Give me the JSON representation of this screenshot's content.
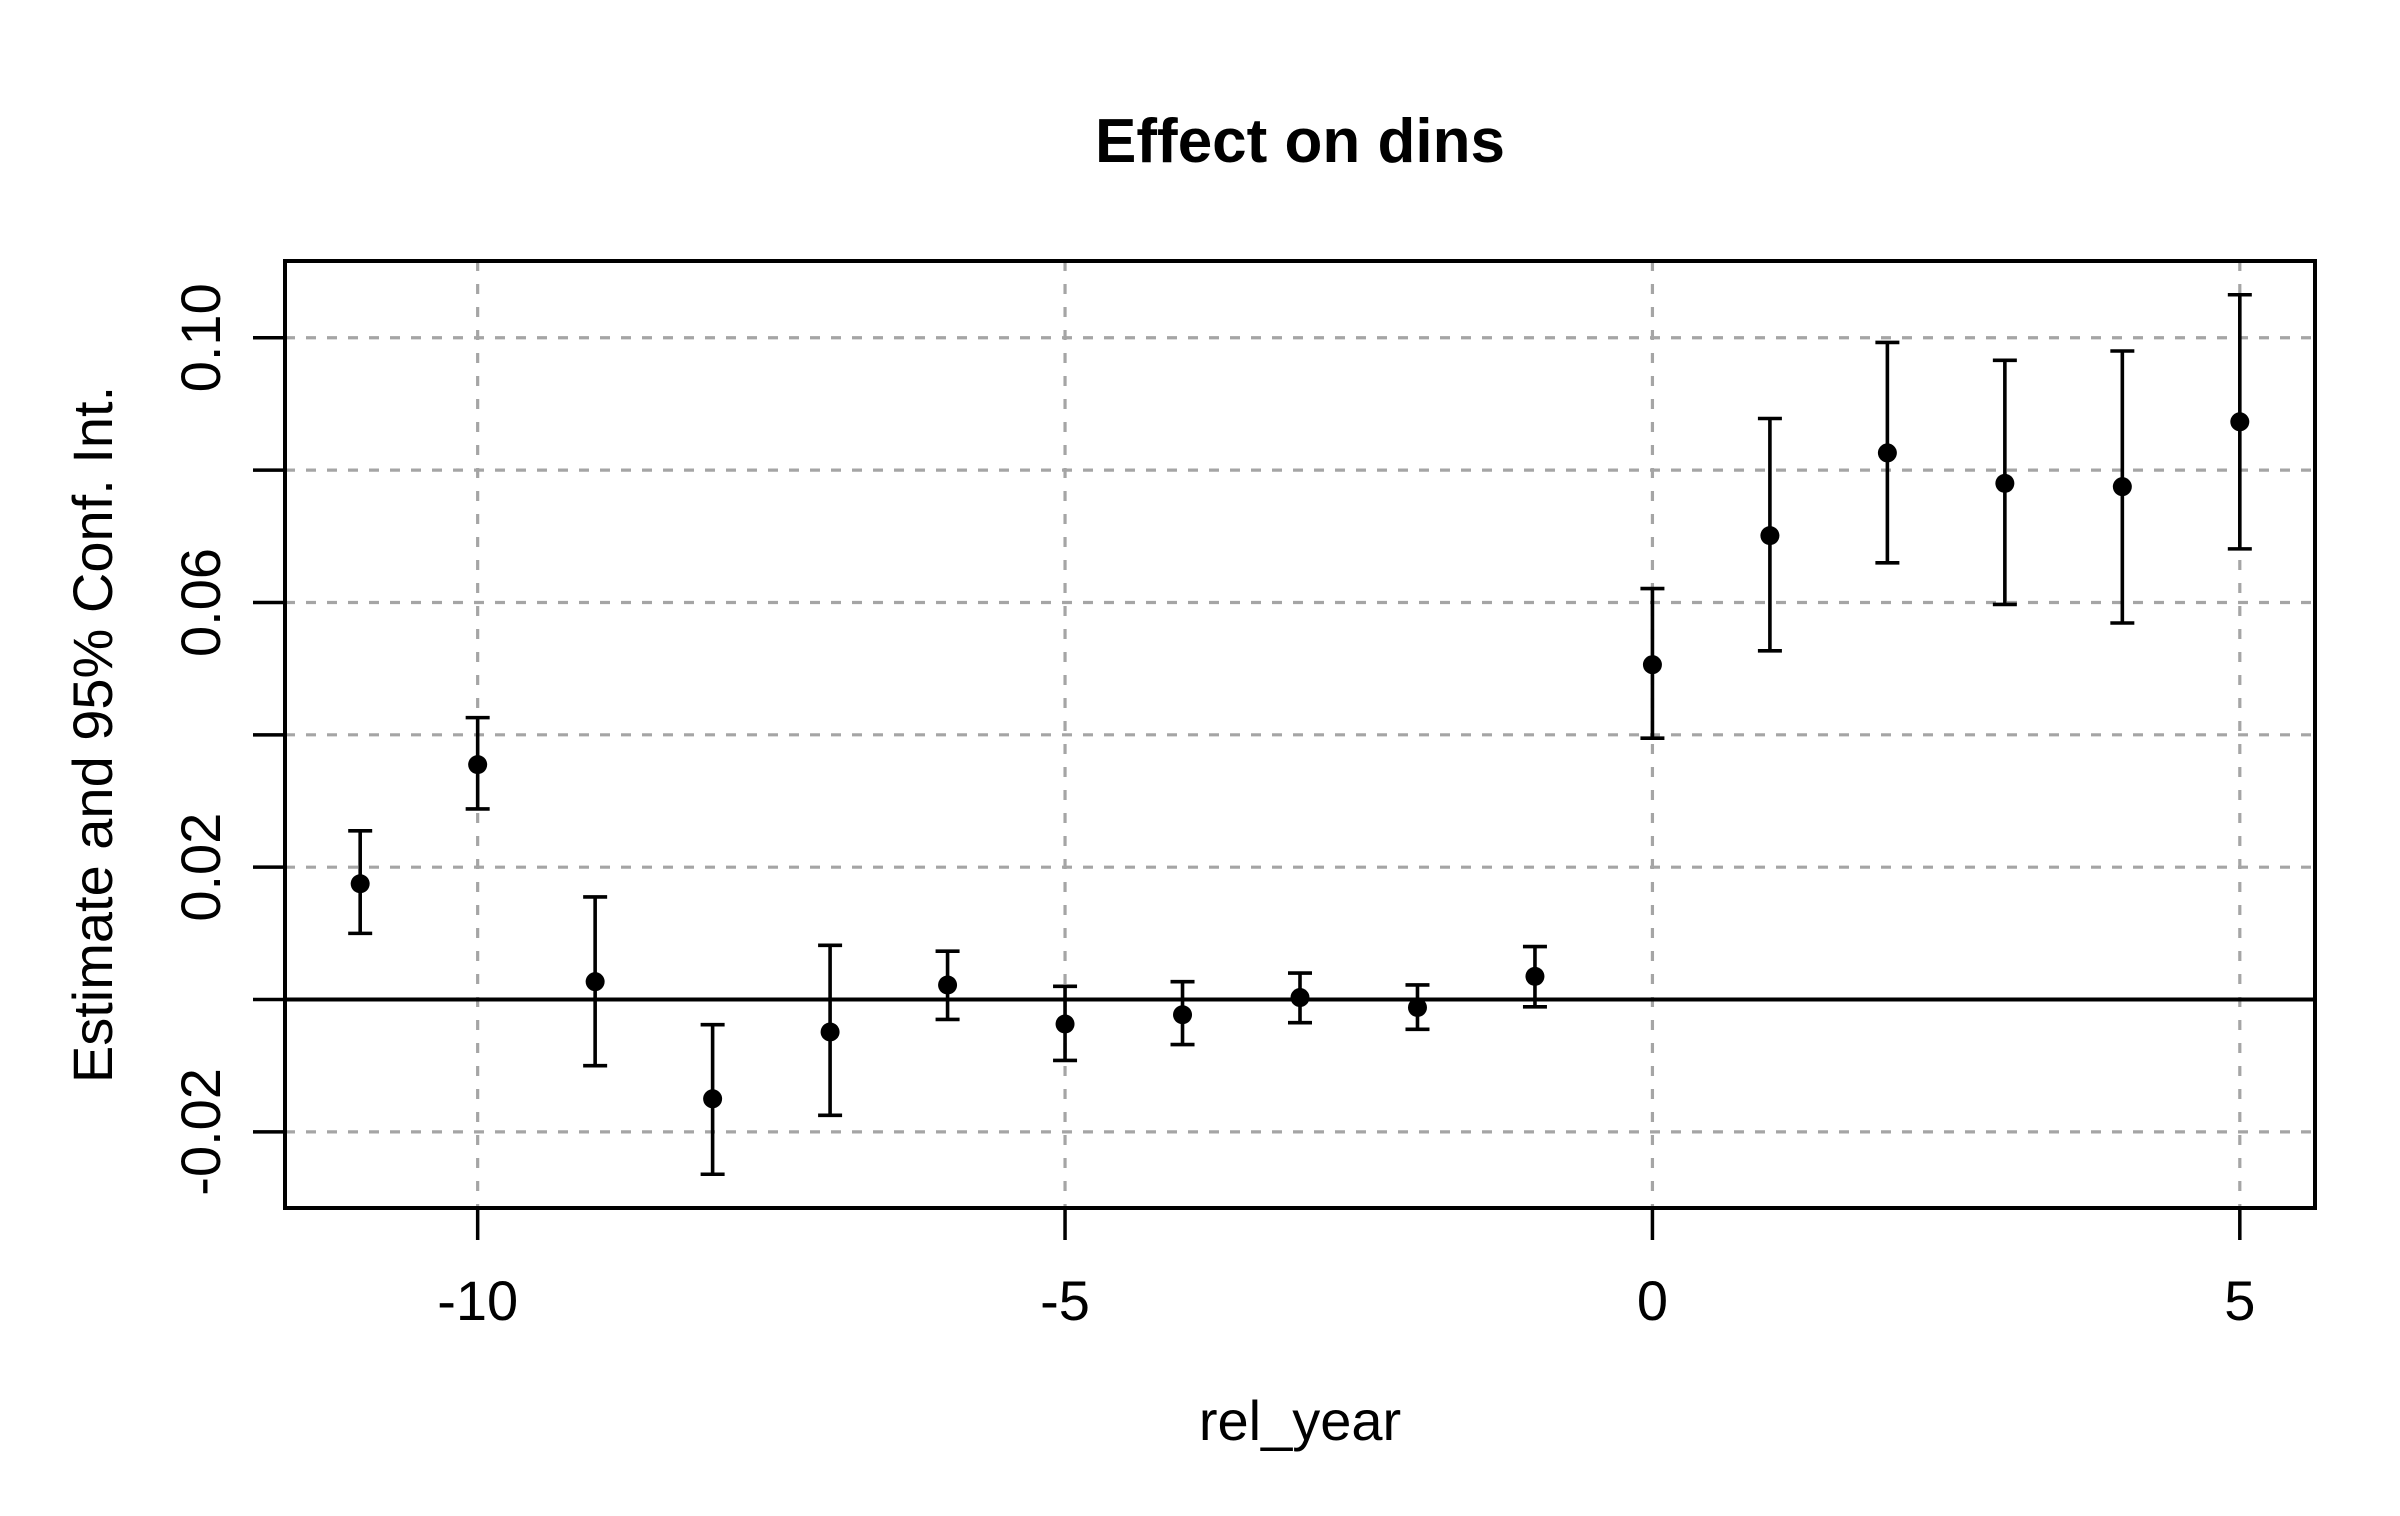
{
  "chart_data": {
    "type": "scatter",
    "title": "Effect on dins",
    "xlabel": "rel_year",
    "ylabel": "Estimate and 95% Conf. Int.",
    "grid": true,
    "grid_style": "dashed",
    "legend": "none",
    "xlim": [
      -11.64,
      5.64
    ],
    "ylim": [
      -0.0315,
      0.1116
    ],
    "x_ticks": [
      {
        "value": -10,
        "label": "-10"
      },
      {
        "value": -5,
        "label": "-5"
      },
      {
        "value": 0,
        "label": "0"
      },
      {
        "value": 5,
        "label": "5"
      }
    ],
    "y_ticks": [
      {
        "value": 0.1,
        "label": "0.10"
      },
      {
        "value": 0.08,
        "label": ""
      },
      {
        "value": 0.06,
        "label": "0.06"
      },
      {
        "value": 0.04,
        "label": ""
      },
      {
        "value": 0.02,
        "label": "0.02"
      },
      {
        "value": 0.0,
        "label": ""
      },
      {
        "value": -0.02,
        "label": "-0.02"
      }
    ],
    "reference_line_y": 0,
    "series": [
      {
        "name": "estimate-with-95ci",
        "marker": "filled-circle",
        "points": [
          {
            "x": -11,
            "y": 0.0175,
            "lo": 0.01,
            "hi": 0.0255
          },
          {
            "x": -10,
            "y": 0.0355,
            "lo": 0.0288,
            "hi": 0.0426
          },
          {
            "x": -9,
            "y": 0.0027,
            "lo": -0.01,
            "hi": 0.0155
          },
          {
            "x": -8,
            "y": -0.015,
            "lo": -0.0264,
            "hi": -0.0038
          },
          {
            "x": -7,
            "y": -0.0049,
            "lo": -0.0175,
            "hi": 0.0082
          },
          {
            "x": -6,
            "y": 0.0022,
            "lo": -0.003,
            "hi": 0.0073
          },
          {
            "x": -5,
            "y": -0.0037,
            "lo": -0.0092,
            "hi": 0.002
          },
          {
            "x": -4,
            "y": -0.0023,
            "lo": -0.0068,
            "hi": 0.0027
          },
          {
            "x": -3,
            "y": 0.0003,
            "lo": -0.0035,
            "hi": 0.004
          },
          {
            "x": -2,
            "y": -0.0012,
            "lo": -0.0045,
            "hi": 0.0022
          },
          {
            "x": -1,
            "y": 0.0035,
            "lo": -0.0011,
            "hi": 0.008
          },
          {
            "x": 0,
            "y": 0.0506,
            "lo": 0.0395,
            "hi": 0.0621
          },
          {
            "x": 1,
            "y": 0.0701,
            "lo": 0.0527,
            "hi": 0.0878
          },
          {
            "x": 2,
            "y": 0.0826,
            "lo": 0.066,
            "hi": 0.0993
          },
          {
            "x": 3,
            "y": 0.078,
            "lo": 0.0597,
            "hi": 0.0966
          },
          {
            "x": 4,
            "y": 0.0775,
            "lo": 0.0569,
            "hi": 0.098
          },
          {
            "x": 5,
            "y": 0.0873,
            "lo": 0.0681,
            "hi": 0.1065
          }
        ]
      }
    ]
  },
  "colors": {
    "foreground": "#000000",
    "background": "#ffffff",
    "gridline": "#a5a5a5"
  }
}
